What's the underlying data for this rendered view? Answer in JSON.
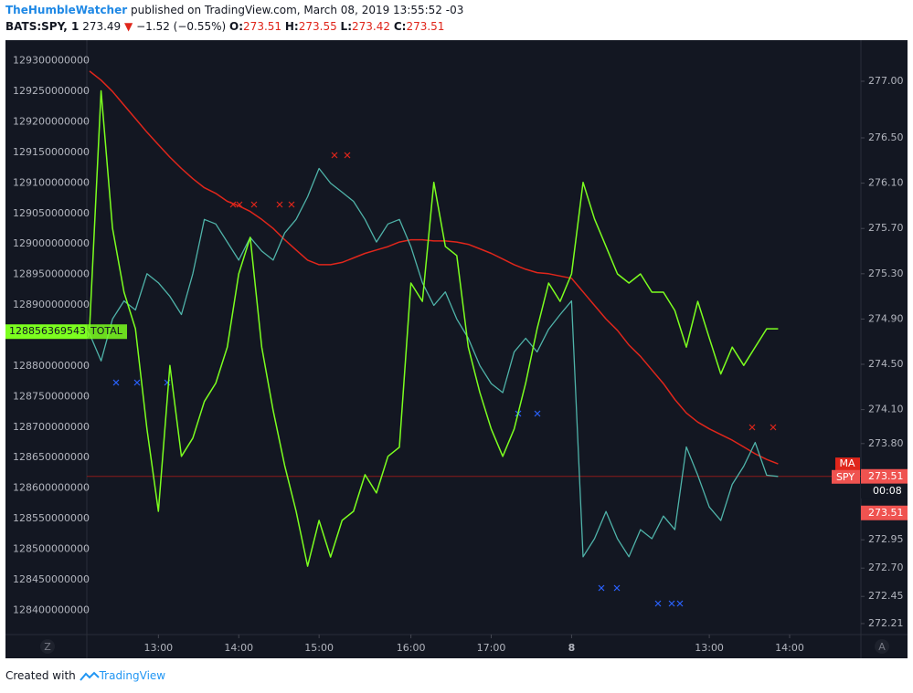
{
  "header": {
    "author": "TheHumbleWatcher",
    "published": "published on TradingView.com, March 08, 2019 13:55:52 -03",
    "symbol": "BATS:SPY, 1",
    "last": "273.49",
    "arrow": "▼",
    "change": "−1.52 (−0.55%)",
    "ohlc": [
      {
        "label": "O:",
        "value": "273.51"
      },
      {
        "label": "H:",
        "value": "273.55"
      },
      {
        "label": "L:",
        "value": "273.42"
      },
      {
        "label": "C:",
        "value": "273.51"
      }
    ]
  },
  "footer": {
    "text": "Created with",
    "brand": "TradingView"
  },
  "buttons": {
    "left": "Z",
    "right": "A"
  },
  "chart_data": {
    "type": "line",
    "categories": [
      null,
      null,
      null,
      null,
      null,
      null,
      "13:00",
      null,
      null,
      null,
      null,
      null,
      null,
      "14:00",
      null,
      null,
      null,
      null,
      null,
      null,
      "15:00",
      null,
      null,
      null,
      null,
      null,
      null,
      null,
      "16:00",
      null,
      null,
      null,
      null,
      null,
      null,
      "17:00",
      null,
      null,
      null,
      null,
      null,
      null,
      "8",
      null,
      null,
      null,
      null,
      null,
      null,
      null,
      null,
      null,
      null,
      null,
      "13:00",
      null,
      null,
      null,
      null,
      null,
      null,
      "14:00"
    ],
    "ylim": [
      128360000000,
      129334000000
    ],
    "yticks": [
      129300000000,
      129250000000,
      129200000000,
      129150000000,
      129100000000,
      129050000000,
      129000000000,
      128950000000,
      128900000000,
      128850000000,
      128800000000,
      128750000000,
      128700000000,
      128650000000,
      128600000000,
      128550000000,
      128500000000,
      128450000000,
      128400000000
    ],
    "y2lim": [
      272.113,
      277.363
    ],
    "y2ticks": [
      {
        "value": 277,
        "label": "277.00"
      },
      {
        "value": 276.5,
        "label": "276.50"
      },
      {
        "value": 276.1,
        "label": "276.10"
      },
      {
        "value": 275.7,
        "label": "275.70"
      },
      {
        "value": 275.3,
        "label": "275.30"
      },
      {
        "value": 274.9,
        "label": "274.90"
      },
      {
        "value": 274.5,
        "label": "274.50"
      },
      {
        "value": 274.1,
        "label": "274.10"
      },
      {
        "value": 273.8,
        "label": "273.80"
      },
      272.95,
      {
        "value": 272.7,
        "label": "272.70"
      },
      272.45,
      272.21
    ],
    "grid": false,
    "countdown": "00:08",
    "close_tag": 273.51,
    "series": [
      {
        "name": "TOTAL",
        "color": "#7cff1f",
        "axis": "y",
        "last_value": 128856369543,
        "values": [
          128861000000,
          129251000000,
          129026000000,
          128921000000,
          128861000000,
          128697000000,
          128562000000,
          128801000000,
          128652000000,
          128682000000,
          128742000000,
          128772000000,
          128831000000,
          128951000000,
          129011000000,
          128831000000,
          128727000000,
          128637000000,
          128562000000,
          128472000000,
          128547000000,
          128487000000,
          128547000000,
          128562000000,
          128622000000,
          128592000000,
          128652000000,
          128667000000,
          128936000000,
          128906000000,
          129101000000,
          128996000000,
          128981000000,
          128831000000,
          128757000000,
          128697000000,
          128652000000,
          128697000000,
          128772000000,
          128861000000,
          128936000000,
          128906000000,
          128951000000,
          129101000000,
          129041000000,
          128996000000,
          128951000000,
          128936000000,
          128951000000,
          128921000000,
          128921000000,
          128891000000,
          128831000000,
          128906000000,
          128846000000,
          128787000000,
          128831000000,
          128801000000,
          128831000000,
          128861000000,
          128861000000,
          null
        ]
      },
      {
        "name": "SPY",
        "color": "#4fb3a9",
        "axis": "y2",
        "last_value": 273.51,
        "values": [
          274.77,
          274.53,
          274.9,
          275.06,
          274.98,
          275.3,
          275.22,
          275.1,
          274.94,
          275.3,
          275.78,
          275.74,
          275.58,
          275.42,
          275.62,
          275.5,
          275.42,
          275.66,
          275.78,
          275.98,
          276.23,
          276.1,
          276.02,
          275.94,
          275.78,
          275.58,
          275.74,
          275.78,
          275.54,
          275.22,
          275.02,
          275.14,
          274.9,
          274.73,
          274.49,
          274.33,
          274.25,
          274.61,
          274.73,
          274.61,
          274.81,
          274.94,
          275.06,
          272.8,
          272.96,
          273.2,
          272.96,
          272.8,
          273.04,
          272.96,
          273.16,
          273.04,
          273.77,
          273.52,
          273.24,
          273.12,
          273.44,
          273.6,
          273.81,
          273.52,
          273.51,
          null
        ]
      },
      {
        "name": "MA",
        "color": "#e0261b",
        "axis": "y2",
        "values": [
          277.09,
          277.01,
          276.91,
          276.79,
          276.67,
          276.55,
          276.44,
          276.33,
          276.23,
          276.14,
          276.06,
          276.01,
          275.94,
          275.9,
          275.85,
          275.78,
          275.7,
          275.6,
          275.51,
          275.42,
          275.38,
          275.38,
          275.4,
          275.44,
          275.48,
          275.51,
          275.54,
          275.58,
          275.6,
          275.6,
          275.59,
          275.59,
          275.58,
          275.56,
          275.52,
          275.48,
          275.43,
          275.38,
          275.34,
          275.31,
          275.3,
          275.28,
          275.26,
          275.14,
          275.02,
          274.9,
          274.8,
          274.67,
          274.57,
          274.45,
          274.33,
          274.19,
          274.07,
          273.99,
          273.93,
          273.88,
          273.83,
          273.77,
          273.71,
          273.66,
          273.62,
          null
        ]
      }
    ]
  }
}
